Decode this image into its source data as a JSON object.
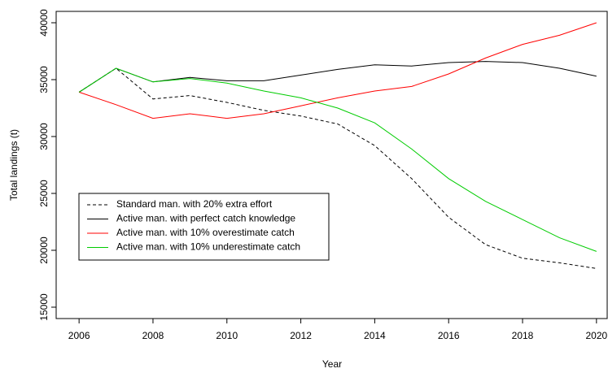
{
  "chart_data": {
    "type": "line",
    "x_label": "Year",
    "y_label": "Total landings (t)",
    "x": [
      2006,
      2007,
      2008,
      2009,
      2010,
      2011,
      2012,
      2013,
      2014,
      2015,
      2016,
      2017,
      2018,
      2019,
      2020
    ],
    "series": [
      {
        "name": "Standard man. with 20% extra effort",
        "color": "#000000",
        "dash": "dashed",
        "values": [
          33900,
          36000,
          33300,
          33600,
          33000,
          32300,
          31800,
          31100,
          29200,
          26300,
          22900,
          20500,
          19300,
          18900,
          18400
        ]
      },
      {
        "name": "Active man. with perfect catch knowledge",
        "color": "#000000",
        "dash": "solid",
        "values": [
          33900,
          36000,
          34800,
          35200,
          34900,
          34900,
          35400,
          35900,
          36300,
          36200,
          36500,
          36600,
          36500,
          36000,
          35300
        ]
      },
      {
        "name": "Active man. with 10% overestimate catch",
        "color": "#ff0000",
        "dash": "solid",
        "values": [
          33900,
          32800,
          31600,
          32000,
          31600,
          32000,
          32700,
          33400,
          34000,
          34400,
          35500,
          36900,
          38100,
          38900,
          40000
        ]
      },
      {
        "name": "Active man. with 10% underestimate catch",
        "color": "#00cc00",
        "dash": "solid",
        "values": [
          33900,
          36000,
          34800,
          35100,
          34700,
          34000,
          33400,
          32500,
          31200,
          28900,
          26300,
          24300,
          22700,
          21100,
          19900
        ]
      }
    ],
    "xlim": [
      2005.38,
      2020.29
    ],
    "xticks": [
      2006,
      2008,
      2010,
      2012,
      2014,
      2016,
      2018,
      2020
    ],
    "ylim": [
      14000,
      41000
    ],
    "yticks": [
      15000,
      20000,
      25000,
      30000,
      35000,
      40000
    ],
    "grid": false,
    "legend": "bottom-left"
  }
}
